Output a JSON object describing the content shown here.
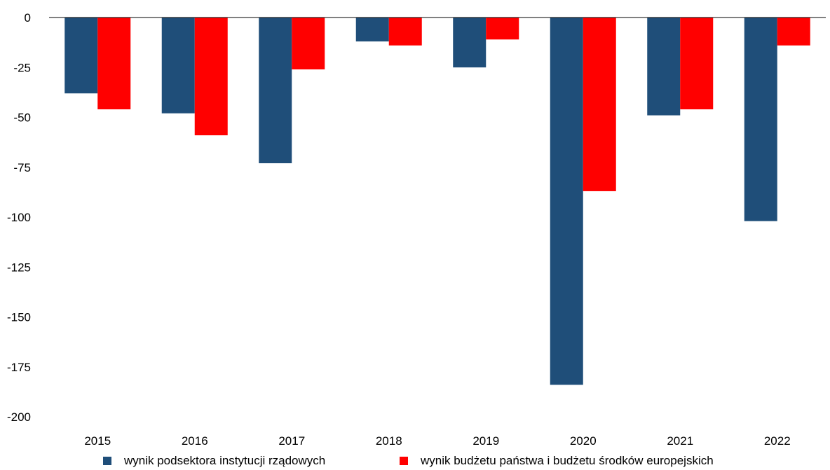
{
  "chart_data": {
    "type": "bar",
    "title": "",
    "xlabel": "",
    "ylabel": "",
    "categories": [
      "2015",
      "2016",
      "2017",
      "2018",
      "2019",
      "2020",
      "2021",
      "2022"
    ],
    "series": [
      {
        "name": "wynik podsektora instytucji rządowych",
        "color": "#1f4e79",
        "values": [
          -38,
          -48,
          -73,
          -12,
          -25,
          -184,
          -49,
          -102
        ]
      },
      {
        "name": "wynik budżetu państwa i budżetu środków europejskich",
        "color": "#ff0000",
        "values": [
          -46,
          -59,
          -26,
          -14,
          -11,
          -87,
          -46,
          -14
        ]
      }
    ],
    "ylim": [
      -200,
      0
    ],
    "yticks": [
      "0",
      "-25",
      "-50",
      "-75",
      "-100",
      "-125",
      "-150",
      "-175",
      "-200"
    ],
    "grid": false,
    "legend_position": "bottom"
  }
}
